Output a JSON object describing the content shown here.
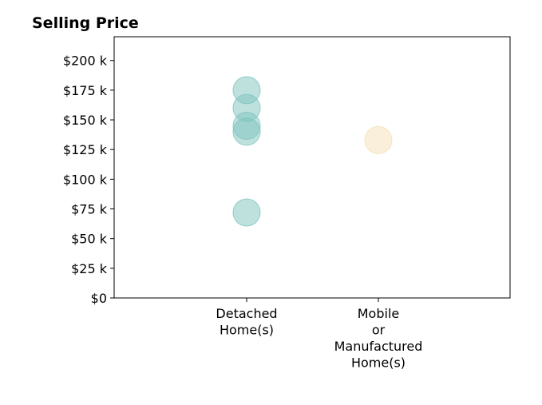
{
  "chart_data": {
    "type": "scatter",
    "title": "Selling Price",
    "xlabel": "",
    "ylabel": "",
    "categories": [
      [
        "Detached",
        "Home(s)"
      ],
      [
        "Mobile",
        "or",
        "Manufactured",
        "Home(s)"
      ]
    ],
    "ylim": [
      0,
      220000
    ],
    "yticks": [
      0,
      25000,
      50000,
      75000,
      100000,
      125000,
      150000,
      175000,
      200000
    ],
    "ytick_labels": [
      "$0",
      "$25 k",
      "$50 k",
      "$75 k",
      "$100 k",
      "$125 k",
      "$150 k",
      "$175 k",
      "$200 k"
    ],
    "grid": false,
    "series": [
      {
        "category_index": 0,
        "color": "#7ec4bd",
        "values": [
          72000,
          140000,
          145000,
          160000,
          175000
        ]
      },
      {
        "category_index": 1,
        "color": "#f3dfb6",
        "values": [
          133000
        ]
      }
    ]
  }
}
